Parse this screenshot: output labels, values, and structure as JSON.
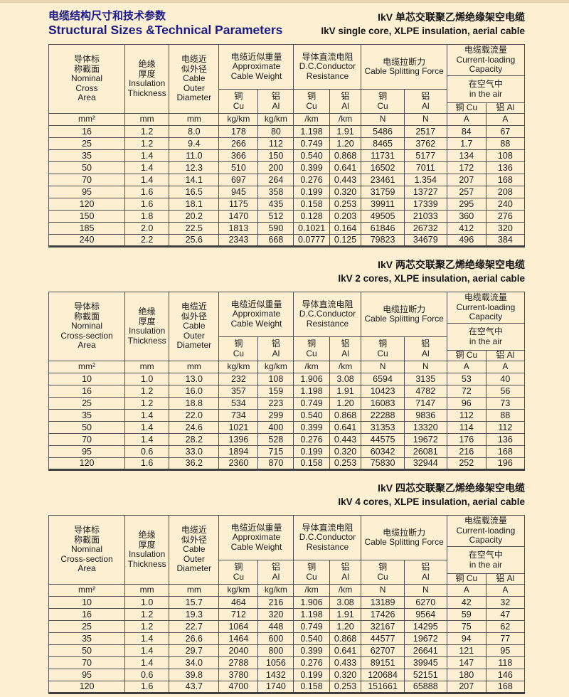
{
  "colors": {
    "background": "#fcefd2",
    "title_navy": "#1a1a8c",
    "grid": "#4a4a4a",
    "text": "#1d1d1d"
  },
  "page_header": {
    "title_zh": "电缆结构尺寸和技术参数",
    "title_en": "Structural Sizes &Technical Parameters"
  },
  "tables": [
    {
      "caption_zh": "IkV 单芯交联聚乙烯绝缘架空电缆",
      "caption_en": "IkV  single core, XLPE insulation, aerial cable",
      "header": {
        "nominal": "导体标\n称截面\nNominal\nCross\nArea",
        "insulation": "绝缘\n厚度\nInsulation\nThickness",
        "diameter": "电缆近\n似外径\nCable\nOuter\nDiameter",
        "weight": "电缆近似重量\nApproximate\nCable Weight",
        "resistance": "导体直流电阻\nD.C.Conductor\nResistance",
        "force": "电缆拉断力\nCable Splitting Force",
        "capacity": "电缆载流量\nCurrent-loading Capacity",
        "air": "在空气中\nin the air",
        "cu": "铜\nCu",
        "al": "铝\nAl",
        "cu_inline": "铜  Cu",
        "al_inline": "铝  Al"
      },
      "units": [
        "mm²",
        "mm",
        "mm",
        "kg/km",
        "kg/km",
        "/km",
        "/km",
        "N",
        "N",
        "A",
        "A"
      ],
      "rows": [
        [
          "16",
          "1.2",
          "8.0",
          "178",
          "80",
          "1.198",
          "1.91",
          "5486",
          "2517",
          "84",
          "67"
        ],
        [
          "25",
          "1.2",
          "9.4",
          "266",
          "112",
          "0.749",
          "1.20",
          "8465",
          "3762",
          "1.7",
          "88"
        ],
        [
          "35",
          "1.4",
          "11.0",
          "366",
          "150",
          "0.540",
          "0.868",
          "11731",
          "5177",
          "134",
          "108"
        ],
        [
          "50",
          "1.4",
          "12.3",
          "510",
          "200",
          "0.399",
          "0.641",
          "16502",
          "7011",
          "172",
          "136"
        ],
        [
          "70",
          "1.4",
          "14.1",
          "697",
          "264",
          "0.276",
          "0.443",
          "23461",
          "1.354",
          "207",
          "168"
        ],
        [
          "95",
          "1.6",
          "16.5",
          "945",
          "358",
          "0.199",
          "0.320",
          "31759",
          "13727",
          "257",
          "208"
        ],
        [
          "120",
          "1.6",
          "18.1",
          "1175",
          "435",
          "0.158",
          "0.253",
          "39911",
          "17339",
          "295",
          "240"
        ],
        [
          "150",
          "1.8",
          "20.2",
          "1470",
          "512",
          "0.128",
          "0.203",
          "49505",
          "21033",
          "360",
          "276"
        ],
        [
          "185",
          "2.0",
          "22.5",
          "1813",
          "590",
          "0.1021",
          "0.164",
          "61846",
          "26732",
          "412",
          "320"
        ],
        [
          "240",
          "2.2",
          "25.6",
          "2343",
          "668",
          "0.0777",
          "0.125",
          "79823",
          "34679",
          "496",
          "384"
        ]
      ]
    },
    {
      "caption_zh": "IkV 两芯交联聚乙烯绝缘架空电缆",
      "caption_en": "IkV  2 cores, XLPE insulation, aerial cable",
      "header": {
        "nominal": "导体标\n称截面\nNominal\nCross-section\nArea",
        "insulation": "绝缘\n厚度\nInsulation\nThickness",
        "diameter": "电缆近\n似外径\nCable\nOuter\nDiameter",
        "weight": "电缆近似重量\nApproximate\nCable Weight",
        "resistance": "导体直流电阻\nD.C.Conductor\nResistance",
        "force": "电缆拉断力\nCable Splitting Force",
        "capacity": "电缆载流量\nCurrent-loading Capacity",
        "air": "在空气中\nin the air",
        "cu": "铜\nCu",
        "al": "铝\nAl",
        "cu_inline": "铜  Cu",
        "al_inline": "铝  Al"
      },
      "units": [
        "mm²",
        "mm",
        "mm",
        "kg/km",
        "kg/km",
        "/km",
        "/km",
        "N",
        "N",
        "A",
        "A"
      ],
      "rows": [
        [
          "10",
          "1.0",
          "13.0",
          "232",
          "108",
          "1.906",
          "3.08",
          "6594",
          "3135",
          "53",
          "40"
        ],
        [
          "16",
          "1.2",
          "16.0",
          "357",
          "159",
          "1.198",
          "1.91",
          "10423",
          "4782",
          "72",
          "56"
        ],
        [
          "25",
          "1.2",
          "18.8",
          "534",
          "223",
          "0.749",
          "1.20",
          "16083",
          "7147",
          "96",
          "73"
        ],
        [
          "35",
          "1.4",
          "22.0",
          "734",
          "299",
          "0.540",
          "0.868",
          "22288",
          "9836",
          "112",
          "88"
        ],
        [
          "50",
          "1.4",
          "24.6",
          "1021",
          "400",
          "0.399",
          "0.641",
          "31353",
          "13320",
          "114",
          "112"
        ],
        [
          "70",
          "1.4",
          "28.2",
          "1396",
          "528",
          "0.276",
          "0.443",
          "44575",
          "19672",
          "176",
          "136"
        ],
        [
          "95",
          "0.6",
          "33.0",
          "1894",
          "715",
          "0.199",
          "0.320",
          "60342",
          "26081",
          "216",
          "168"
        ],
        [
          "120",
          "1.6",
          "36.2",
          "2360",
          "870",
          "0.158",
          "0.253",
          "75830",
          "32944",
          "252",
          "196"
        ]
      ]
    },
    {
      "caption_zh": "IkV 四芯交联聚乙烯绝缘架空电缆",
      "caption_en": "IkV  4 cores, XLPE insulation, aerial cable",
      "header": {
        "nominal": "导体标\n称截面\nNominal\nCross-section\nArea",
        "insulation": "绝缘\n厚度\nInsulation\nThickness",
        "diameter": "电缆近\n似外径\nCable\nOuter\nDiameter",
        "weight": "电缆近似重量\nApproximate\nCable Weight",
        "resistance": "导体直流电阻\nD.C.Conductor\nResistance",
        "force": "电缆拉断力\nCable Splitting Force",
        "capacity": "电缆载流量\nCurrent-loading Capacity",
        "air": "在空气中\nin the air",
        "cu": "铜\nCu",
        "al": "铝\nAl",
        "cu_inline": "铜  Cu",
        "al_inline": "铝  Al"
      },
      "units": [
        "mm²",
        "mm",
        "mm",
        "kg/km",
        "kg/km",
        "/km",
        "/km",
        "N",
        "N",
        "A",
        "A"
      ],
      "rows": [
        [
          "10",
          "1.0",
          "15.7",
          "464",
          "216",
          "1.906",
          "3.08",
          "13189",
          "6270",
          "42",
          "32"
        ],
        [
          "16",
          "1.2",
          "19.3",
          "712",
          "320",
          "1.198",
          "1.91",
          "17426",
          "9564",
          "59",
          "47"
        ],
        [
          "25",
          "1.2",
          "22.7",
          "1064",
          "448",
          "0.749",
          "1.20",
          "32167",
          "14295",
          "75",
          "62"
        ],
        [
          "35",
          "1.4",
          "26.6",
          "1464",
          "600",
          "0.540",
          "0.868",
          "44577",
          "19672",
          "94",
          "77"
        ],
        [
          "50",
          "1.4",
          "29.7",
          "2040",
          "800",
          "0.399",
          "0.641",
          "62707",
          "26641",
          "121",
          "95"
        ],
        [
          "70",
          "1.4",
          "34.0",
          "2788",
          "1056",
          "0.276",
          "0.433",
          "89151",
          "39945",
          "147",
          "118"
        ],
        [
          "95",
          "0.6",
          "39.8",
          "3780",
          "1432",
          "0.199",
          "0.320",
          "120684",
          "52151",
          "180",
          "146"
        ],
        [
          "120",
          "1.6",
          "43.7",
          "4700",
          "1740",
          "0.158",
          "0.253",
          "151661",
          "65888",
          "207",
          "168"
        ]
      ]
    }
  ]
}
